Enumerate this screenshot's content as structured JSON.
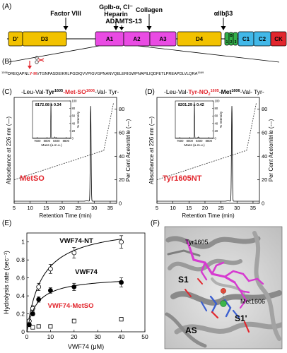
{
  "panels": {
    "a": "(A)",
    "b": "(B)",
    "c": "(C)",
    "d": "(D)",
    "e": "(E)",
    "f": "(F)"
  },
  "domain_diagram": {
    "domains": [
      {
        "label": "D'",
        "color": "#f2c200"
      },
      {
        "label": "D3",
        "color": "#f2c200"
      },
      {
        "label": "A1",
        "color": "#e94be3"
      },
      {
        "label": "A2",
        "color": "#e94be3"
      },
      {
        "label": "A3",
        "color": "#e94be3"
      },
      {
        "label": "D4",
        "color": "#f2c200"
      },
      {
        "label": "B1",
        "color": "#33b04a"
      },
      {
        "label": "B2",
        "color": "#33b04a"
      },
      {
        "label": "B3",
        "color": "#33b04a"
      },
      {
        "label": "C1",
        "color": "#42b8e8"
      },
      {
        "label": "C2",
        "color": "#42b8e8"
      },
      {
        "label": "CK",
        "color": "#e2262d"
      }
    ],
    "sublabels": [
      "B",
      "1",
      "2",
      "3"
    ],
    "binding_labels": {
      "factor_viii": "Factor VIII",
      "gpib": "GpIb-α, Cl⁻",
      "heparin": "Heparin",
      "adamts": "ADAMTS-13",
      "collagen": "Collagen",
      "integrin": "αIIbβ3"
    }
  },
  "sequence": {
    "start": "1596",
    "text1": "DREQAPNL",
    "cleave1": "Y",
    "dash": "-",
    "cleave2": "M",
    "text2": "VTGNPASDEIKRLPGDIQVVPIGVGPNANVQELERIGWPNAPILIQDFETLPREAPDLVLQRA",
    "end": "1669"
  },
  "panel_c": {
    "header_plain1": "-Leu-Val-",
    "header_bold1": "Tyr",
    "header_sup1": "1605",
    "header_red": "-Met-SO",
    "header_sup2": "1606",
    "header_plain2": "-Val- Tyr-",
    "inset_mass": "8172.08 ± 0.34",
    "label": "MetSO"
  },
  "panel_d": {
    "header_plain1": "-Leu-Val-",
    "header_red": "Tyr-NO",
    "header_sub": "2",
    "header_sup1": "1605",
    "header_bold": "-Met",
    "header_sup2": "1606",
    "header_plain2": "-Val- Tyr-",
    "inset_mass": "8201.29 ± 0.42",
    "label": "Tyr1605NT"
  },
  "chromatogram_axes": {
    "ylabel_left": "Absorbance at 226 nm (—)",
    "ylabel_right": "Per Cent Acetonitrile (---)",
    "xlabel": "Retention Time (min)",
    "xticks": [
      "5",
      "10",
      "15",
      "20",
      "25",
      "30",
      "35"
    ],
    "yticks_right": [
      "0",
      "20",
      "40",
      "60",
      "80"
    ],
    "inset_xlabel": "Mass (a.m.u.)",
    "inset_ylabel": "% Intensity",
    "inset_xticks": [
      "7600",
      "8000",
      "8400",
      "8800"
    ],
    "inset_yticks": [
      "0",
      "20",
      "40",
      "60",
      "80",
      "100"
    ]
  },
  "chart_data": {
    "type": "scatter",
    "xlabel": "VWF74 (μM)",
    "ylabel": "Hydrolysis rate (sec⁻¹)",
    "xlim": [
      0,
      50
    ],
    "ylim": [
      0,
      1.1
    ],
    "xticks": [
      "0",
      "10",
      "20",
      "30",
      "40",
      "50"
    ],
    "yticks": [
      "0",
      "0.2",
      "0.4",
      "0.6",
      "0.8",
      "1"
    ],
    "series": [
      {
        "name": "VWF74-NT",
        "marker": "open-circle",
        "color": "#000000",
        "x": [
          1,
          2.5,
          5,
          10,
          20,
          40
        ],
        "y": [
          0.12,
          0.26,
          0.5,
          0.7,
          0.88,
          1.0
        ],
        "err": [
          0.02,
          0.03,
          0.04,
          0.05,
          0.06,
          0.07
        ],
        "fit": {
          "vmax": 1.2,
          "km": 6.5
        }
      },
      {
        "name": "VWF74",
        "marker": "filled-circle",
        "color": "#000000",
        "x": [
          1,
          2.5,
          5,
          10,
          20,
          40
        ],
        "y": [
          0.08,
          0.2,
          0.36,
          0.46,
          0.5,
          0.55
        ],
        "err": [
          0.01,
          0.02,
          0.03,
          0.03,
          0.04,
          0.05
        ],
        "fit": {
          "vmax": 0.62,
          "km": 4.2
        }
      },
      {
        "name": "VWF74-MetSO",
        "marker": "open-square",
        "color": "#000000",
        "x": [
          2.5,
          5,
          10,
          20,
          40
        ],
        "y": [
          0.05,
          0.06,
          0.06,
          0.12,
          0.14
        ],
        "err": [
          0.0,
          0.0,
          0.0,
          0.02,
          0.02
        ]
      }
    ],
    "series_label_colors": [
      "#000000",
      "#000000",
      "#e2262d"
    ]
  },
  "structure": {
    "labels": {
      "tyr": "Tyr1605",
      "met": "Met1606",
      "s1": "S1",
      "s1p": "S1'",
      "as": "AS"
    }
  }
}
